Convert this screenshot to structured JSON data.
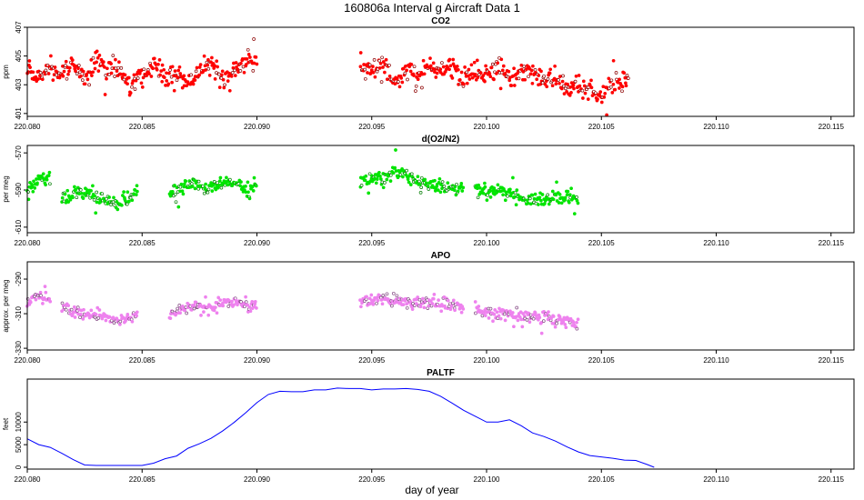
{
  "figure": {
    "title": "160806a   Interval g Aircraft Data 1",
    "xlabel": "day of year"
  },
  "chart_data": [
    {
      "id": "co2",
      "type": "scatter",
      "title": "CO2",
      "ylabel": "ppm",
      "color": "#ff0000",
      "xlim": [
        220.08,
        220.116
      ],
      "ylim": [
        400.8,
        407.0
      ],
      "x_ticks": [
        "220.080",
        "220.085",
        "220.090",
        "220.095",
        "220.100",
        "220.105",
        "220.110",
        "220.115"
      ],
      "y_ticks": [
        "401",
        "403",
        "405",
        "407"
      ],
      "segments": [
        {
          "x_start": 220.08,
          "x_end": 220.09,
          "points": [
            [
              220.08,
              404.1
            ],
            [
              220.0805,
              403.4
            ],
            [
              220.081,
              404.3
            ],
            [
              220.0815,
              403.7
            ],
            [
              220.082,
              404.6
            ],
            [
              220.0825,
              403.2
            ],
            [
              220.083,
              404.9
            ],
            [
              220.0835,
              403.9
            ],
            [
              220.084,
              404.2
            ],
            [
              220.0845,
              402.8
            ],
            [
              220.085,
              403.6
            ],
            [
              220.0855,
              404.4
            ],
            [
              220.086,
              403.5
            ],
            [
              220.0865,
              404.0
            ],
            [
              220.087,
              402.9
            ],
            [
              220.0875,
              403.8
            ],
            [
              220.088,
              404.5
            ],
            [
              220.0885,
              403.3
            ],
            [
              220.089,
              404.1
            ],
            [
              220.0895,
              404.6
            ],
            [
              220.09,
              404.8
            ]
          ]
        },
        {
          "x_start": 220.0945,
          "x_end": 220.1062,
          "points": [
            [
              220.0945,
              404.3
            ],
            [
              220.095,
              403.7
            ],
            [
              220.0955,
              404.6
            ],
            [
              220.096,
              403.2
            ],
            [
              220.0965,
              404.0
            ],
            [
              220.097,
              403.5
            ],
            [
              220.0975,
              404.4
            ],
            [
              220.098,
              403.9
            ],
            [
              220.0985,
              404.1
            ],
            [
              220.099,
              403.4
            ],
            [
              220.0995,
              403.8
            ],
            [
              220.1,
              403.6
            ],
            [
              220.1005,
              404.2
            ],
            [
              220.101,
              403.3
            ],
            [
              220.1015,
              403.9
            ],
            [
              220.102,
              403.7
            ],
            [
              220.1025,
              403.1
            ],
            [
              220.103,
              403.5
            ],
            [
              220.1035,
              402.7
            ],
            [
              220.104,
              403.0
            ],
            [
              220.1045,
              402.6
            ],
            [
              220.105,
              402.2
            ],
            [
              220.1055,
              403.1
            ],
            [
              220.1062,
              403.4
            ]
          ]
        }
      ],
      "scatter_sd": 0.65
    },
    {
      "id": "o2n2",
      "type": "scatter",
      "title": "d(O2/N2)",
      "ylabel": "per meg",
      "color": "#00e400",
      "xlim": [
        220.08,
        220.116
      ],
      "ylim": [
        -613,
        -566
      ],
      "x_ticks": [
        "220.080",
        "220.085",
        "220.090",
        "220.095",
        "220.100",
        "220.105",
        "220.110",
        "220.115"
      ],
      "y_ticks": [
        "-610",
        "-590",
        "-570"
      ],
      "segments": [
        {
          "x_start": 220.08,
          "x_end": 220.081,
          "points": [
            [
              220.08,
              -590
            ],
            [
              220.0805,
              -585
            ],
            [
              220.081,
              -583
            ]
          ]
        },
        {
          "x_start": 220.0815,
          "x_end": 220.0848,
          "points": [
            [
              220.0815,
              -594
            ],
            [
              220.082,
              -592
            ],
            [
              220.0825,
              -591
            ],
            [
              220.083,
              -594
            ],
            [
              220.0835,
              -596
            ],
            [
              220.084,
              -597
            ],
            [
              220.0845,
              -594
            ],
            [
              220.0848,
              -590
            ]
          ]
        },
        {
          "x_start": 220.0862,
          "x_end": 220.09,
          "points": [
            [
              220.0862,
              -592
            ],
            [
              220.0868,
              -589
            ],
            [
              220.0874,
              -586
            ],
            [
              220.088,
              -589
            ],
            [
              220.0886,
              -586
            ],
            [
              220.0892,
              -585
            ],
            [
              220.0896,
              -591
            ],
            [
              220.09,
              -587
            ]
          ]
        },
        {
          "x_start": 220.0945,
          "x_end": 220.099,
          "points": [
            [
              220.0945,
              -585
            ],
            [
              220.095,
              -583
            ],
            [
              220.0955,
              -584
            ],
            [
              220.096,
              -580
            ],
            [
              220.0965,
              -582
            ],
            [
              220.097,
              -586
            ],
            [
              220.0975,
              -587
            ],
            [
              220.098,
              -588
            ],
            [
              220.0985,
              -589
            ],
            [
              220.099,
              -591
            ]
          ]
        },
        {
          "x_start": 220.0995,
          "x_end": 220.104,
          "points": [
            [
              220.0995,
              -590
            ],
            [
              220.1,
              -591
            ],
            [
              220.1005,
              -591
            ],
            [
              220.101,
              -592
            ],
            [
              220.1015,
              -594
            ],
            [
              220.102,
              -595
            ],
            [
              220.1025,
              -596
            ],
            [
              220.103,
              -594
            ],
            [
              220.1035,
              -593
            ],
            [
              220.104,
              -595
            ]
          ]
        }
      ],
      "scatter_sd": 3.4
    },
    {
      "id": "apo",
      "type": "scatter",
      "title": "APO",
      "ylabel": "approx. per meg",
      "color": "#ee82ee",
      "xlim": [
        220.08,
        220.116
      ],
      "ylim": [
        -331,
        -280
      ],
      "x_ticks": [
        "220.080",
        "220.085",
        "220.090",
        "220.095",
        "220.100",
        "220.105",
        "220.110",
        "220.115"
      ],
      "y_ticks": [
        "-330",
        "-310",
        "-290"
      ],
      "segments": [
        {
          "x_start": 220.08,
          "x_end": 220.081,
          "points": [
            [
              220.08,
              -304
            ],
            [
              220.0805,
              -300
            ],
            [
              220.081,
              -302
            ]
          ]
        },
        {
          "x_start": 220.0815,
          "x_end": 220.0848,
          "points": [
            [
              220.0815,
              -306
            ],
            [
              220.082,
              -308
            ],
            [
              220.0825,
              -310
            ],
            [
              220.083,
              -311
            ],
            [
              220.0835,
              -312
            ],
            [
              220.084,
              -314
            ],
            [
              220.0845,
              -312
            ],
            [
              220.0848,
              -309
            ]
          ]
        },
        {
          "x_start": 220.0862,
          "x_end": 220.09,
          "points": [
            [
              220.0862,
              -310
            ],
            [
              220.0868,
              -307
            ],
            [
              220.0874,
              -305
            ],
            [
              220.088,
              -306
            ],
            [
              220.0886,
              -304
            ],
            [
              220.0892,
              -303
            ],
            [
              220.0896,
              -306
            ],
            [
              220.09,
              -305
            ]
          ]
        },
        {
          "x_start": 220.0945,
          "x_end": 220.099,
          "points": [
            [
              220.0945,
              -305
            ],
            [
              220.095,
              -302
            ],
            [
              220.0955,
              -301
            ],
            [
              220.096,
              -302
            ],
            [
              220.0965,
              -303
            ],
            [
              220.097,
              -304
            ],
            [
              220.0975,
              -304
            ],
            [
              220.098,
              -304
            ],
            [
              220.0985,
              -305
            ],
            [
              220.099,
              -306
            ]
          ]
        },
        {
          "x_start": 220.0995,
          "x_end": 220.104,
          "points": [
            [
              220.0995,
              -308
            ],
            [
              220.1,
              -309
            ],
            [
              220.1005,
              -310
            ],
            [
              220.101,
              -310
            ],
            [
              220.1015,
              -311
            ],
            [
              220.102,
              -312
            ],
            [
              220.1025,
              -313
            ],
            [
              220.103,
              -314
            ],
            [
              220.1035,
              -314
            ],
            [
              220.104,
              -315
            ]
          ]
        }
      ],
      "scatter_sd": 3.2
    },
    {
      "id": "paltf",
      "type": "line",
      "title": "PALTF",
      "ylabel": "feet",
      "color": "#0000ff",
      "xlim": [
        220.08,
        220.116
      ],
      "ylim": [
        -400,
        19500
      ],
      "x_ticks": [
        "220.080",
        "220.085",
        "220.090",
        "220.095",
        "220.100",
        "220.105",
        "220.110",
        "220.115"
      ],
      "y_ticks": [
        "0",
        "5000",
        "10000"
      ],
      "x": [
        220.08,
        220.0805,
        220.081,
        220.0815,
        220.082,
        220.0825,
        220.083,
        220.084,
        220.085,
        220.0855,
        220.086,
        220.0865,
        220.087,
        220.0875,
        220.088,
        220.0885,
        220.089,
        220.0895,
        220.09,
        220.0905,
        220.091,
        220.0915,
        220.092,
        220.0925,
        220.093,
        220.0935,
        220.094,
        220.0945,
        220.095,
        220.0955,
        220.096,
        220.0965,
        220.097,
        220.0975,
        220.098,
        220.0985,
        220.099,
        220.0995,
        220.1,
        220.1005,
        220.101,
        220.1015,
        220.102,
        220.1025,
        220.103,
        220.1035,
        220.104,
        220.1045,
        220.105,
        220.1055,
        220.106,
        220.1065,
        220.107,
        220.1073
      ],
      "y": [
        6300,
        5000,
        4400,
        3100,
        1700,
        500,
        400,
        400,
        400,
        900,
        1900,
        2500,
        4200,
        5200,
        6400,
        8000,
        9900,
        12000,
        14300,
        16100,
        16800,
        16700,
        16700,
        17100,
        17100,
        17500,
        17400,
        17400,
        17100,
        17300,
        17300,
        17400,
        17200,
        16800,
        15700,
        14200,
        12600,
        11300,
        10000,
        10000,
        10500,
        9200,
        7600,
        6800,
        5800,
        4500,
        3400,
        2600,
        2300,
        2000,
        1600,
        1500,
        600,
        0
      ]
    }
  ]
}
